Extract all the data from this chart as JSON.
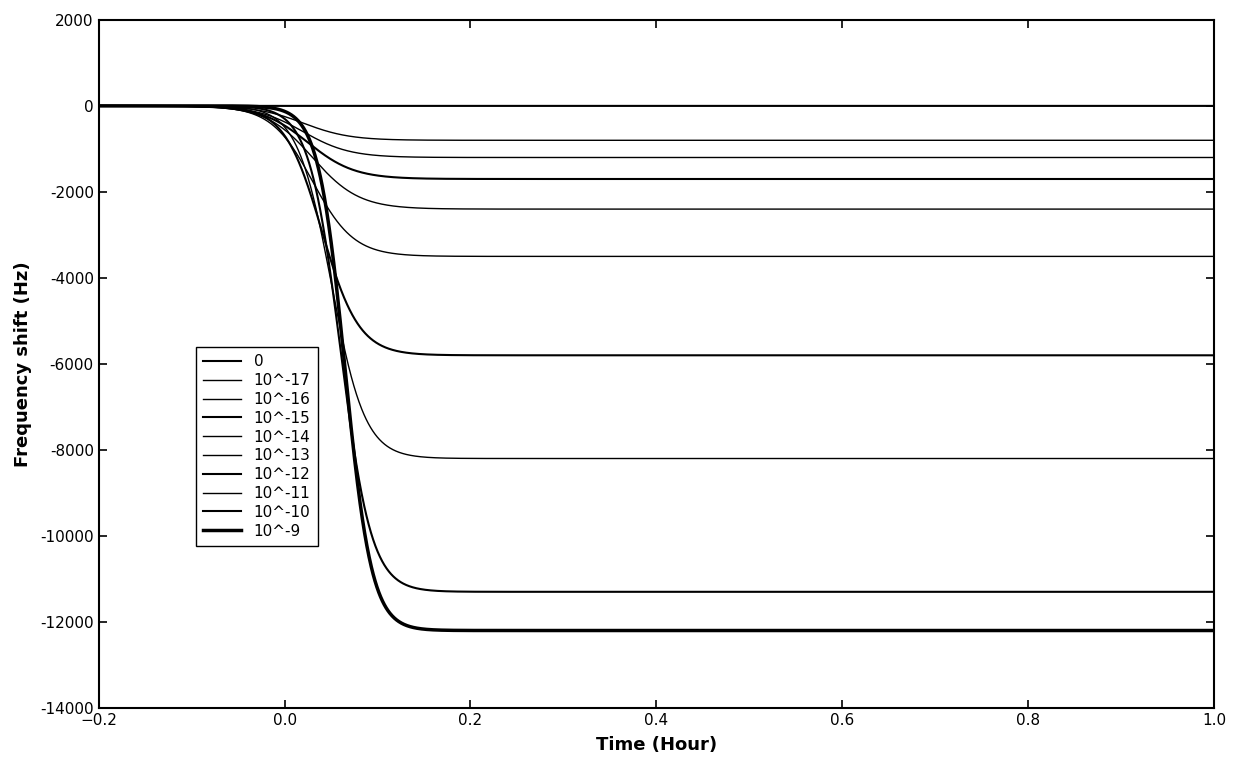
{
  "title": "",
  "xlabel": "Time (Hour)",
  "ylabel": "Frequency shift (Hz)",
  "xlim": [
    -0.2,
    1.0
  ],
  "ylim": [
    -14000,
    2000
  ],
  "yticks": [
    2000,
    0,
    -2000,
    -4000,
    -6000,
    -8000,
    -10000,
    -12000,
    -14000
  ],
  "xticks": [
    -0.2,
    0.0,
    0.2,
    0.4,
    0.6,
    0.8,
    1.0
  ],
  "legend_labels": [
    "0",
    "10^-17",
    "10^-16",
    "10^-15",
    "10^-14",
    "10^-13",
    "10^-12",
    "10^-11",
    "10^-10",
    "10^-9"
  ],
  "background_color": "#ffffff",
  "line_color": "#000000",
  "curve_params": [
    {
      "fv": 0,
      "k": 0,
      "t0": 0.02,
      "lw": 1.5
    },
    {
      "fv": -800,
      "k": 40,
      "t0": 0.02,
      "lw": 1.0
    },
    {
      "fv": -1200,
      "k": 40,
      "t0": 0.02,
      "lw": 1.0
    },
    {
      "fv": -1700,
      "k": 40,
      "t0": 0.025,
      "lw": 1.5
    },
    {
      "fv": -2400,
      "k": 40,
      "t0": 0.03,
      "lw": 1.0
    },
    {
      "fv": -3500,
      "k": 45,
      "t0": 0.03,
      "lw": 1.0
    },
    {
      "fv": -5800,
      "k": 50,
      "t0": 0.04,
      "lw": 1.5
    },
    {
      "fv": -8200,
      "k": 55,
      "t0": 0.05,
      "lw": 1.0
    },
    {
      "fv": -11300,
      "k": 60,
      "t0": 0.06,
      "lw": 1.5
    },
    {
      "fv": -12200,
      "k": 70,
      "t0": 0.065,
      "lw": 2.5
    }
  ]
}
